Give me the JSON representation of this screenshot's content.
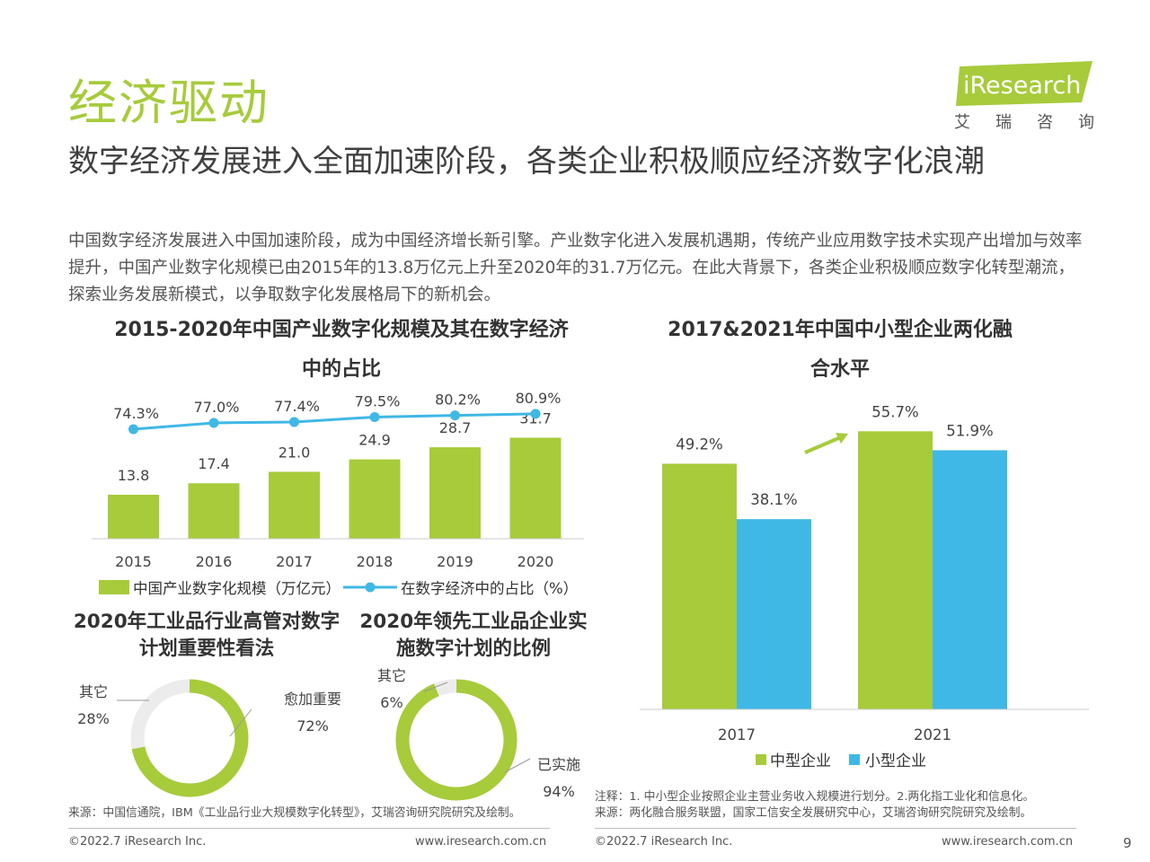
{
  "header": {
    "section_title": "经济驱动",
    "logo_text": "iResearch",
    "logo_cn": "艾瑞咨询",
    "brand_color": "#a7cb3b"
  },
  "headline": "数字经济发展进入全面加速阶段，各类企业积极顺应经济数字化浪潮",
  "intro": "中国数字经济发展进入中国加速阶段，成为中国经济增长新引擎。产业数字化进入发展机遇期，传统产业应用数字技术实现产出增加与效率提升，中国产业数字化规模已由2015年的13.8万亿元上升至2020年的31.7万亿元。在此大背景下，各类企业积极顺应数字化转型潮流，探索业务发展新模式，以争取数字化发展格局下的新机会。",
  "chart_data": [
    {
      "type": "bar",
      "title": "2015-2020年中国产业数字化规模及其在数字经济中的占比",
      "categories": [
        "2015",
        "2016",
        "2017",
        "2018",
        "2019",
        "2020"
      ],
      "series": [
        {
          "name": "中国产业数字化规模（万亿元）",
          "kind": "bar",
          "values": [
            13.8,
            17.4,
            21.0,
            24.9,
            28.7,
            31.7
          ],
          "labels": [
            "13.8",
            "17.4",
            "21.0",
            "24.9",
            "28.7",
            "31.7"
          ],
          "color": "#a7cb3b"
        },
        {
          "name": "在数字经济中的占比（%）",
          "kind": "line",
          "values": [
            74.3,
            77.0,
            77.4,
            79.5,
            80.2,
            80.9
          ],
          "labels": [
            "74.3%",
            "77.0%",
            "77.4%",
            "79.5%",
            "80.2%",
            "80.9%"
          ],
          "color": "#3fb8e6"
        }
      ]
    },
    {
      "type": "bar",
      "title": "2017&2021年中国中小型企业两化融合水平",
      "categories": [
        "2017",
        "2021"
      ],
      "series": [
        {
          "name": "中型企业",
          "values": [
            49.2,
            55.7
          ],
          "labels": [
            "49.2%",
            "55.7%"
          ],
          "color": "#a7cb3b"
        },
        {
          "name": "小型企业",
          "values": [
            38.1,
            51.9
          ],
          "labels": [
            "38.1%",
            "51.9%"
          ],
          "color": "#3fb8e6"
        }
      ]
    },
    {
      "type": "pie",
      "title": "2020年工业品行业高管对数字计划重要性看法",
      "slices": [
        {
          "name": "愈加重要",
          "value": 72,
          "label": "72%",
          "color": "#a7cb3b"
        },
        {
          "name": "其它",
          "value": 28,
          "label": "28%",
          "color": "#ececec"
        }
      ]
    },
    {
      "type": "pie",
      "title": "2020年领先工业品企业实施数字计划的比例",
      "slices": [
        {
          "name": "已实施",
          "value": 94,
          "label": "94%",
          "color": "#a7cb3b"
        },
        {
          "name": "其它",
          "value": 6,
          "label": "6%",
          "color": "#ececec"
        }
      ]
    }
  ],
  "notes": {
    "left_source": "来源：中国信通院，IBM《工业品行业大规模数字化转型》，艾瑞咨询研究院研究及绘制。",
    "right_note": "注释：1. 中小型企业按照企业主营业务收入规模进行划分。2.两化指工业化和信息化。",
    "right_source": "来源：两化融合服务联盟，国家工信安全发展研究中心，艾瑞咨询研究院研究及绘制。"
  },
  "footer": {
    "copyright_left": "©2022.7 iResearch Inc.",
    "url_left": "www.iresearch.com.cn",
    "copyright_right": "©2022.7 iResearch Inc.",
    "url_right": "www.iresearch.com.cn",
    "page_number": "9"
  }
}
